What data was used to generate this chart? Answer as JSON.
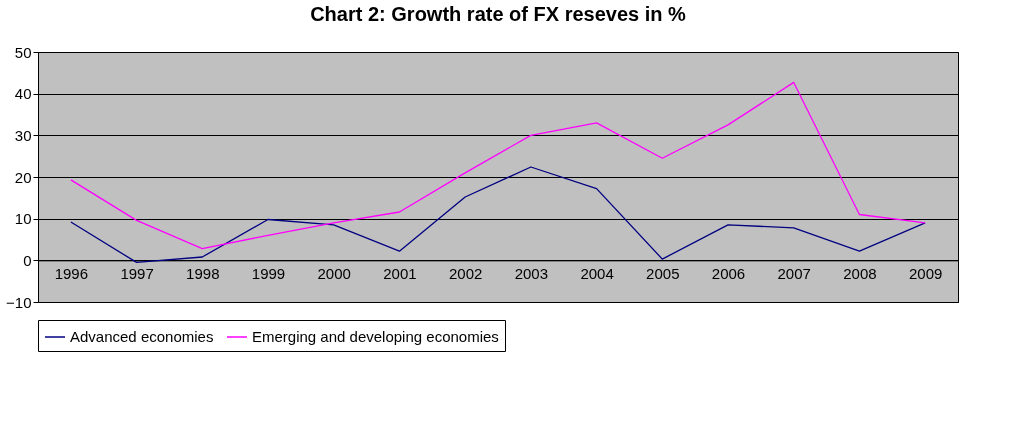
{
  "chart_data": {
    "type": "line",
    "title": "Chart 2: Growth rate of FX reseves in %",
    "categories": [
      "1996",
      "1997",
      "1998",
      "1999",
      "2000",
      "2001",
      "2002",
      "2003",
      "2004",
      "2005",
      "2006",
      "2007",
      "2008",
      "2009"
    ],
    "series": [
      {
        "name": "Advanced economies",
        "color": "#000080",
        "values": [
          9.2,
          -0.5,
          0.8,
          9.8,
          8.5,
          2.2,
          15.2,
          22.4,
          17.2,
          0.3,
          8.5,
          7.8,
          2.2,
          9
        ]
      },
      {
        "name": "Emerging and developing economies",
        "color": "#ff00ff",
        "values": [
          19.3,
          9.6,
          2.8,
          6,
          9,
          11.6,
          21,
          30,
          33,
          24.5,
          32.5,
          42.7,
          11,
          9
        ]
      }
    ],
    "ylim": [
      -10,
      50
    ],
    "yticks": [
      -10,
      0,
      10,
      20,
      30,
      40,
      50
    ],
    "grid": "y",
    "legend": "bottom",
    "marker": "none",
    "line_style": "solid"
  }
}
